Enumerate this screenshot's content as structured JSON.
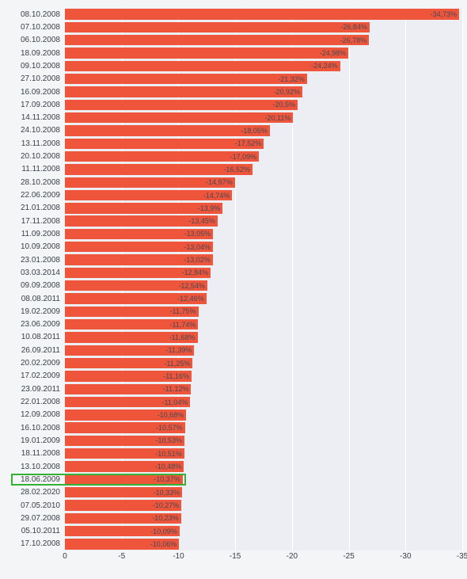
{
  "chart": {
    "type": "bar-horizontal",
    "background_color": "#eceef3",
    "page_background": "#f4f5f7",
    "grid_color": "#ffffff",
    "bar_color": "#ef553b",
    "label_color": "#3a4048",
    "value_label_color": "#444a55",
    "highlight_color": "#33b233",
    "label_fontsize": 10,
    "value_fontsize": 9,
    "x_domain_min": 0,
    "x_domain_max": -35,
    "x_ticks": [
      0,
      -5,
      -10,
      -15,
      -20,
      -25,
      -30,
      -35
    ],
    "highlighted_index": 36,
    "rows": [
      {
        "date": "08.10.2008",
        "value": -34.73,
        "label": "-34,73%"
      },
      {
        "date": "07.10.2008",
        "value": -26.84,
        "label": "-26,84%"
      },
      {
        "date": "06.10.2008",
        "value": -26.78,
        "label": "-26,78%"
      },
      {
        "date": "18.09.2008",
        "value": -24.98,
        "label": "-24,98%"
      },
      {
        "date": "09.10.2008",
        "value": -24.24,
        "label": "-24,24%"
      },
      {
        "date": "27.10.2008",
        "value": -21.32,
        "label": "-21,32%"
      },
      {
        "date": "16.09.2008",
        "value": -20.92,
        "label": "-20,92%"
      },
      {
        "date": "17.09.2008",
        "value": -20.5,
        "label": "-20,5%"
      },
      {
        "date": "14.11.2008",
        "value": -20.11,
        "label": "-20,11%"
      },
      {
        "date": "24.10.2008",
        "value": -18.05,
        "label": "-18,05%"
      },
      {
        "date": "13.11.2008",
        "value": -17.52,
        "label": "-17,52%"
      },
      {
        "date": "20.10.2008",
        "value": -17.09,
        "label": "-17,09%"
      },
      {
        "date": "11.11.2008",
        "value": -16.52,
        "label": "-16,52%"
      },
      {
        "date": "28.10.2008",
        "value": -14.97,
        "label": "-14,97%"
      },
      {
        "date": "22.06.2009",
        "value": -14.74,
        "label": "-14,74%"
      },
      {
        "date": "21.01.2008",
        "value": -13.9,
        "label": "-13,9%"
      },
      {
        "date": "17.11.2008",
        "value": -13.45,
        "label": "-13,45%"
      },
      {
        "date": "11.09.2008",
        "value": -13.05,
        "label": "-13,05%"
      },
      {
        "date": "10.09.2008",
        "value": -13.04,
        "label": "-13,04%"
      },
      {
        "date": "23.01.2008",
        "value": -13.02,
        "label": "-13,02%"
      },
      {
        "date": "03.03.2014",
        "value": -12.84,
        "label": "-12,84%"
      },
      {
        "date": "09.09.2008",
        "value": -12.54,
        "label": "-12,54%"
      },
      {
        "date": "08.08.2011",
        "value": -12.46,
        "label": "-12,46%"
      },
      {
        "date": "19.02.2009",
        "value": -11.75,
        "label": "-11,75%"
      },
      {
        "date": "23.06.2009",
        "value": -11.74,
        "label": "-11,74%"
      },
      {
        "date": "10.08.2011",
        "value": -11.68,
        "label": "-11,68%"
      },
      {
        "date": "26.09.2011",
        "value": -11.39,
        "label": "-11,39%"
      },
      {
        "date": "20.02.2009",
        "value": -11.25,
        "label": "-11,25%"
      },
      {
        "date": "17.02.2009",
        "value": -11.16,
        "label": "-11,16%"
      },
      {
        "date": "23.09.2011",
        "value": -11.12,
        "label": "-11,12%"
      },
      {
        "date": "22.01.2008",
        "value": -11.04,
        "label": "-11,04%"
      },
      {
        "date": "12.09.2008",
        "value": -10.68,
        "label": "-10,68%"
      },
      {
        "date": "16.10.2008",
        "value": -10.57,
        "label": "-10,57%"
      },
      {
        "date": "19.01.2009",
        "value": -10.53,
        "label": "-10,53%"
      },
      {
        "date": "18.11.2008",
        "value": -10.51,
        "label": "-10,51%"
      },
      {
        "date": "13.10.2008",
        "value": -10.48,
        "label": "-10,48%"
      },
      {
        "date": "18.06.2009",
        "value": -10.37,
        "label": "-10,37%"
      },
      {
        "date": "28.02.2020",
        "value": -10.33,
        "label": "-10,33%"
      },
      {
        "date": "07.05.2010",
        "value": -10.27,
        "label": "-10,27%"
      },
      {
        "date": "29.07.2008",
        "value": -10.23,
        "label": "-10,23%"
      },
      {
        "date": "05.10.2011",
        "value": -10.09,
        "label": "-10,09%"
      },
      {
        "date": "17.10.2008",
        "value": -10.06,
        "label": "-10,06%"
      }
    ]
  }
}
